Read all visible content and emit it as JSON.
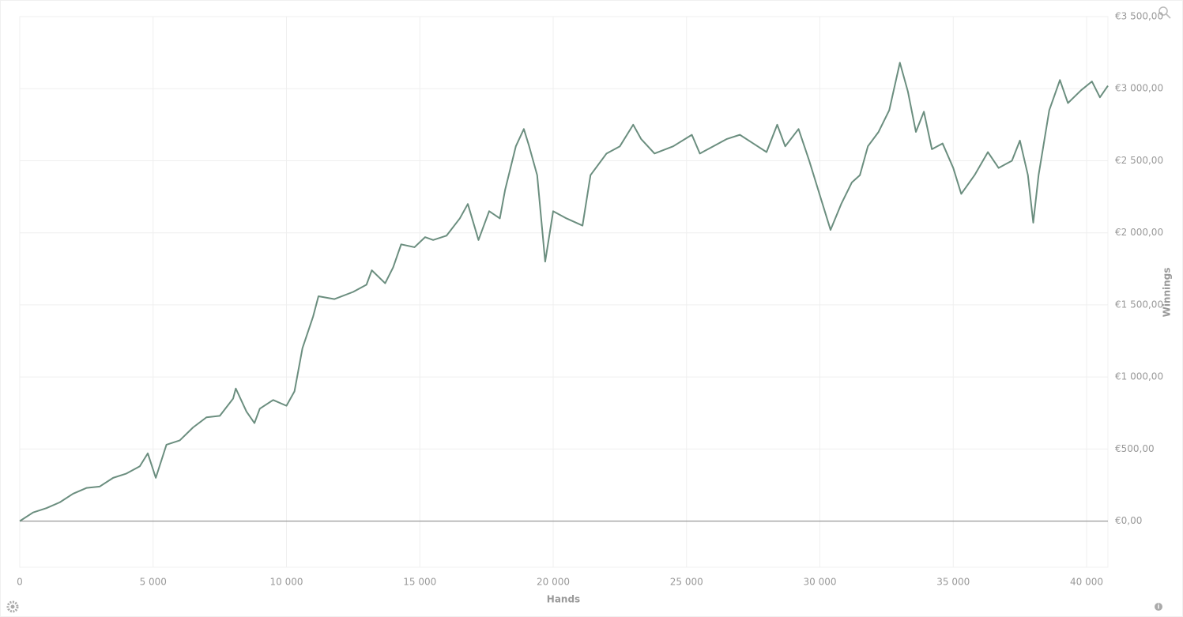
{
  "chart_data": {
    "type": "line",
    "x_label": "Hands",
    "y_label": "Winnings",
    "color": "#6b8e7f",
    "grid": true,
    "xlim": [
      0,
      40800
    ],
    "ylim": [
      -320,
      3500
    ],
    "xticks": [
      0,
      {
        "value": 5000,
        "label": "5 000"
      },
      {
        "value": 10000,
        "label": "10 000"
      },
      {
        "value": 15000,
        "label": "15 000"
      },
      {
        "value": 20000,
        "label": "20 000"
      },
      {
        "value": 25000,
        "label": "25 000"
      },
      {
        "value": 30000,
        "label": "30 000"
      },
      {
        "value": 35000,
        "label": "35 000"
      },
      {
        "value": 40000,
        "label": "40 000"
      }
    ],
    "yticks": [
      {
        "value": 0,
        "label": "€0,00"
      },
      {
        "value": 500,
        "label": "€500,00"
      },
      {
        "value": 1000,
        "label": "€1 000,00"
      },
      {
        "value": 1500,
        "label": "€1 500,00"
      },
      {
        "value": 2000,
        "label": "€2 000,00"
      },
      {
        "value": 2500,
        "label": "€2 500,00"
      },
      {
        "value": 3000,
        "label": "€3 000,00"
      },
      {
        "value": 3500,
        "label": "€3 500,00"
      }
    ],
    "x": [
      0,
      500,
      1000,
      1500,
      2000,
      2500,
      3000,
      3500,
      4000,
      4500,
      4800,
      5100,
      5500,
      6000,
      6500,
      7000,
      7500,
      8000,
      8100,
      8500,
      8800,
      9000,
      9500,
      10000,
      10300,
      10600,
      11000,
      11200,
      11800,
      12500,
      13000,
      13200,
      13700,
      14000,
      14300,
      14800,
      15200,
      15500,
      16000,
      16500,
      16800,
      17200,
      17600,
      18000,
      18200,
      18600,
      18900,
      19100,
      19400,
      19600,
      19700,
      20000,
      20500,
      21100,
      21400,
      22000,
      22500,
      23000,
      23300,
      23800,
      24500,
      25200,
      25500,
      26000,
      26500,
      27000,
      27500,
      28000,
      28400,
      28700,
      29200,
      29600,
      30000,
      30400,
      30800,
      31200,
      31500,
      31800,
      32200,
      32600,
      33000,
      33300,
      33600,
      33900,
      34200,
      34600,
      35000,
      35300,
      35800,
      36300,
      36700,
      37200,
      37500,
      37800,
      38000,
      38200,
      38600,
      39000,
      39300,
      39800,
      40200,
      40500,
      40800
    ],
    "values": [
      0,
      60,
      90,
      130,
      190,
      230,
      240,
      300,
      330,
      380,
      470,
      300,
      530,
      560,
      650,
      720,
      730,
      850,
      920,
      760,
      680,
      780,
      840,
      800,
      900,
      1200,
      1420,
      1560,
      1540,
      1590,
      1640,
      1740,
      1650,
      1760,
      1920,
      1900,
      1970,
      1950,
      1980,
      2100,
      2200,
      1950,
      2150,
      2100,
      2300,
      2600,
      2720,
      2600,
      2400,
      2000,
      1800,
      2150,
      2100,
      2050,
      2400,
      2550,
      2600,
      2750,
      2650,
      2550,
      2600,
      2680,
      2550,
      2600,
      2650,
      2680,
      2620,
      2560,
      2750,
      2600,
      2720,
      2500,
      2260,
      2020,
      2200,
      2350,
      2400,
      2600,
      2700,
      2850,
      3180,
      2980,
      2700,
      2840,
      2580,
      2620,
      2450,
      2270,
      2400,
      2560,
      2450,
      2500,
      2640,
      2400,
      2070,
      2400,
      2850,
      3060,
      2900,
      2990,
      3050,
      2940,
      3020
    ]
  }
}
